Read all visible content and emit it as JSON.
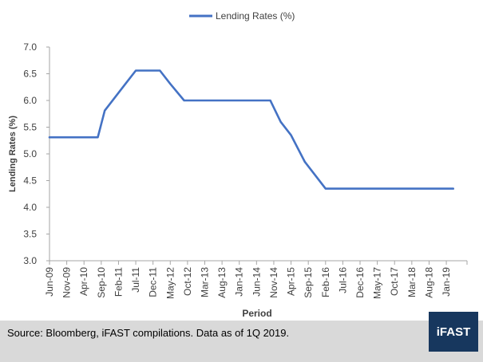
{
  "chart_data": {
    "type": "line",
    "title": "",
    "legend": {
      "label": "Lending Rates (%)",
      "position": "top-center"
    },
    "xlabel": "Period",
    "ylabel": "Lending Rates (%)",
    "ylim": [
      3.0,
      7.0
    ],
    "y_ticks": [
      "3.0",
      "3.5",
      "4.0",
      "4.5",
      "5.0",
      "5.5",
      "6.0",
      "6.5",
      "7.0"
    ],
    "x_tick_labels": [
      "Jun-09",
      "Nov-09",
      "Apr-10",
      "Sep-10",
      "Feb-11",
      "Jul-11",
      "Dec-11",
      "May-12",
      "Oct-12",
      "Mar-13",
      "Aug-13",
      "Jan-14",
      "Jun-14",
      "Nov-14",
      "Apr-15",
      "Sep-15",
      "Feb-16",
      "Jul-16",
      "Dec-16",
      "May-17",
      "Oct-17",
      "Mar-18",
      "Aug-18",
      "Jan-19"
    ],
    "series": [
      {
        "name": "Lending Rates (%)",
        "color": "#4472c4",
        "points": [
          {
            "x": "2009-06",
            "y": 5.31
          },
          {
            "x": "2010-08",
            "y": 5.31
          },
          {
            "x": "2010-10",
            "y": 5.81
          },
          {
            "x": "2011-04",
            "y": 6.31
          },
          {
            "x": "2011-07",
            "y": 6.56
          },
          {
            "x": "2012-02",
            "y": 6.56
          },
          {
            "x": "2012-05",
            "y": 6.31
          },
          {
            "x": "2012-09",
            "y": 6.0
          },
          {
            "x": "2014-10",
            "y": 6.0
          },
          {
            "x": "2015-01",
            "y": 5.6
          },
          {
            "x": "2015-04",
            "y": 5.35
          },
          {
            "x": "2015-08",
            "y": 4.85
          },
          {
            "x": "2016-02",
            "y": 4.35
          },
          {
            "x": "2019-03",
            "y": 4.35
          }
        ]
      }
    ],
    "grid": false
  },
  "footer": {
    "source": "Source: Bloomberg, iFAST compilations. Data as of 1Q 2019.",
    "logo_text": "iFAST",
    "logo_color": "#17375e",
    "background": "#d9d9d9"
  }
}
